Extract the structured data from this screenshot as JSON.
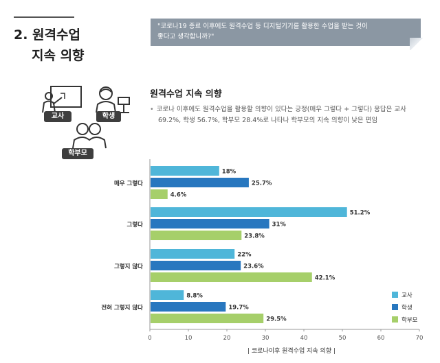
{
  "section": {
    "title_line1": "2. 원격수업",
    "title_line2": "지속 의향"
  },
  "quote": {
    "line1": "\"코로나19 종료 이후에도 원격수업 등 디지털기기를 활용한 수업을 받는 것이",
    "line2": "좋다고 생각합니까?\""
  },
  "icons": {
    "teacher_label": "교사",
    "student_label": "학생",
    "parent_label": "학부모"
  },
  "chart_data": {
    "type": "bar",
    "orientation": "horizontal",
    "title": "원격수업 지속 의향",
    "description_line1": "코로나 이후에도 원격수업을 활용할 의향이 있다는 긍정(매우 그렇다 + 그렇다) 응답은 교사",
    "description_line2": "69.2%, 학생 56.7%, 학부모 28.4%로 나타나 학부모의 지속 의향이 낮은 편임",
    "categories": [
      "매우 그렇다",
      "그렇다",
      "그렇지 않다",
      "전혀 그렇지 않다"
    ],
    "series": [
      {
        "name": "교사",
        "color": "#4fb6d9",
        "values": [
          18,
          51.2,
          22,
          8.8
        ],
        "labels": [
          "18%",
          "51.2%",
          "22%",
          "8.8%"
        ]
      },
      {
        "name": "학생",
        "color": "#2877bf",
        "values": [
          25.7,
          31,
          23.6,
          19.7
        ],
        "labels": [
          "25.7%",
          "31%",
          "23.6%",
          "19.7%"
        ]
      },
      {
        "name": "학부모",
        "color": "#a6cf6a",
        "values": [
          4.6,
          23.8,
          42.1,
          29.5
        ],
        "labels": [
          "4.6%",
          "23.8%",
          "42.1%",
          "29.5%"
        ]
      }
    ],
    "xlim": [
      0,
      70
    ],
    "xticks": [
      "0",
      "10",
      "20",
      "30",
      "40",
      "50",
      "60",
      "70"
    ],
    "grid": false,
    "legend_position": "bottom-right",
    "caption": "| 코로나이후 원격수업 지속 의향 |"
  }
}
